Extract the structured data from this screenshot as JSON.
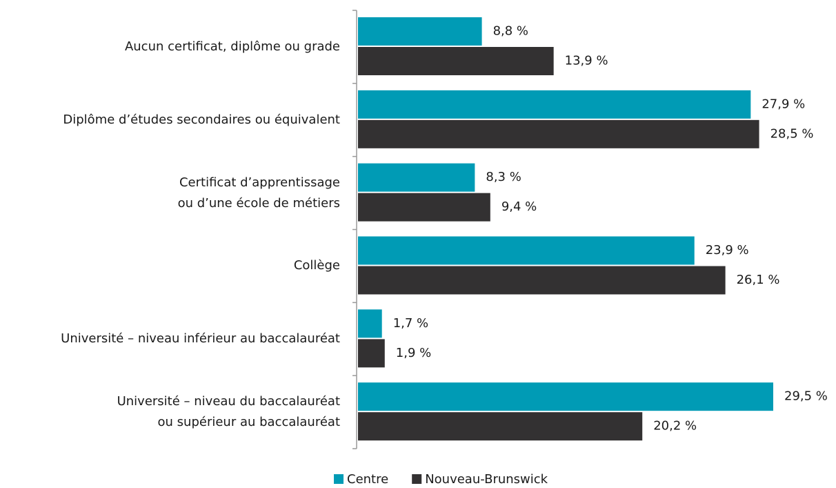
{
  "chart_data": {
    "type": "bar",
    "orientation": "horizontal",
    "categories": [
      "Aucun certificat, diplôme ou grade",
      "Diplôme d’études secondaires ou équivalent",
      "Certificat d’apprentissage\nou d’une école de métiers",
      "Collège",
      "Université – niveau inférieur au baccalauréat",
      "Université – niveau du baccalauréat\nou supérieur au baccalauréat"
    ],
    "series": [
      {
        "name": "Centre",
        "color": "#009bb5",
        "values": [
          8.8,
          27.9,
          8.3,
          23.9,
          1.7,
          29.5
        ],
        "value_labels": [
          "8,8 %",
          "27,9 %",
          "8,3 %",
          "23,9 %",
          "1,7 %",
          "29,5 %"
        ]
      },
      {
        "name": "Nouveau-Brunswick",
        "color": "#333132",
        "values": [
          13.9,
          28.5,
          9.4,
          26.1,
          1.9,
          20.2
        ],
        "value_labels": [
          "13,9 %",
          "28,5 %",
          "9,4 %",
          "26,1 %",
          "1,9 %",
          "20,2 %"
        ]
      }
    ],
    "legend": "bottom"
  }
}
